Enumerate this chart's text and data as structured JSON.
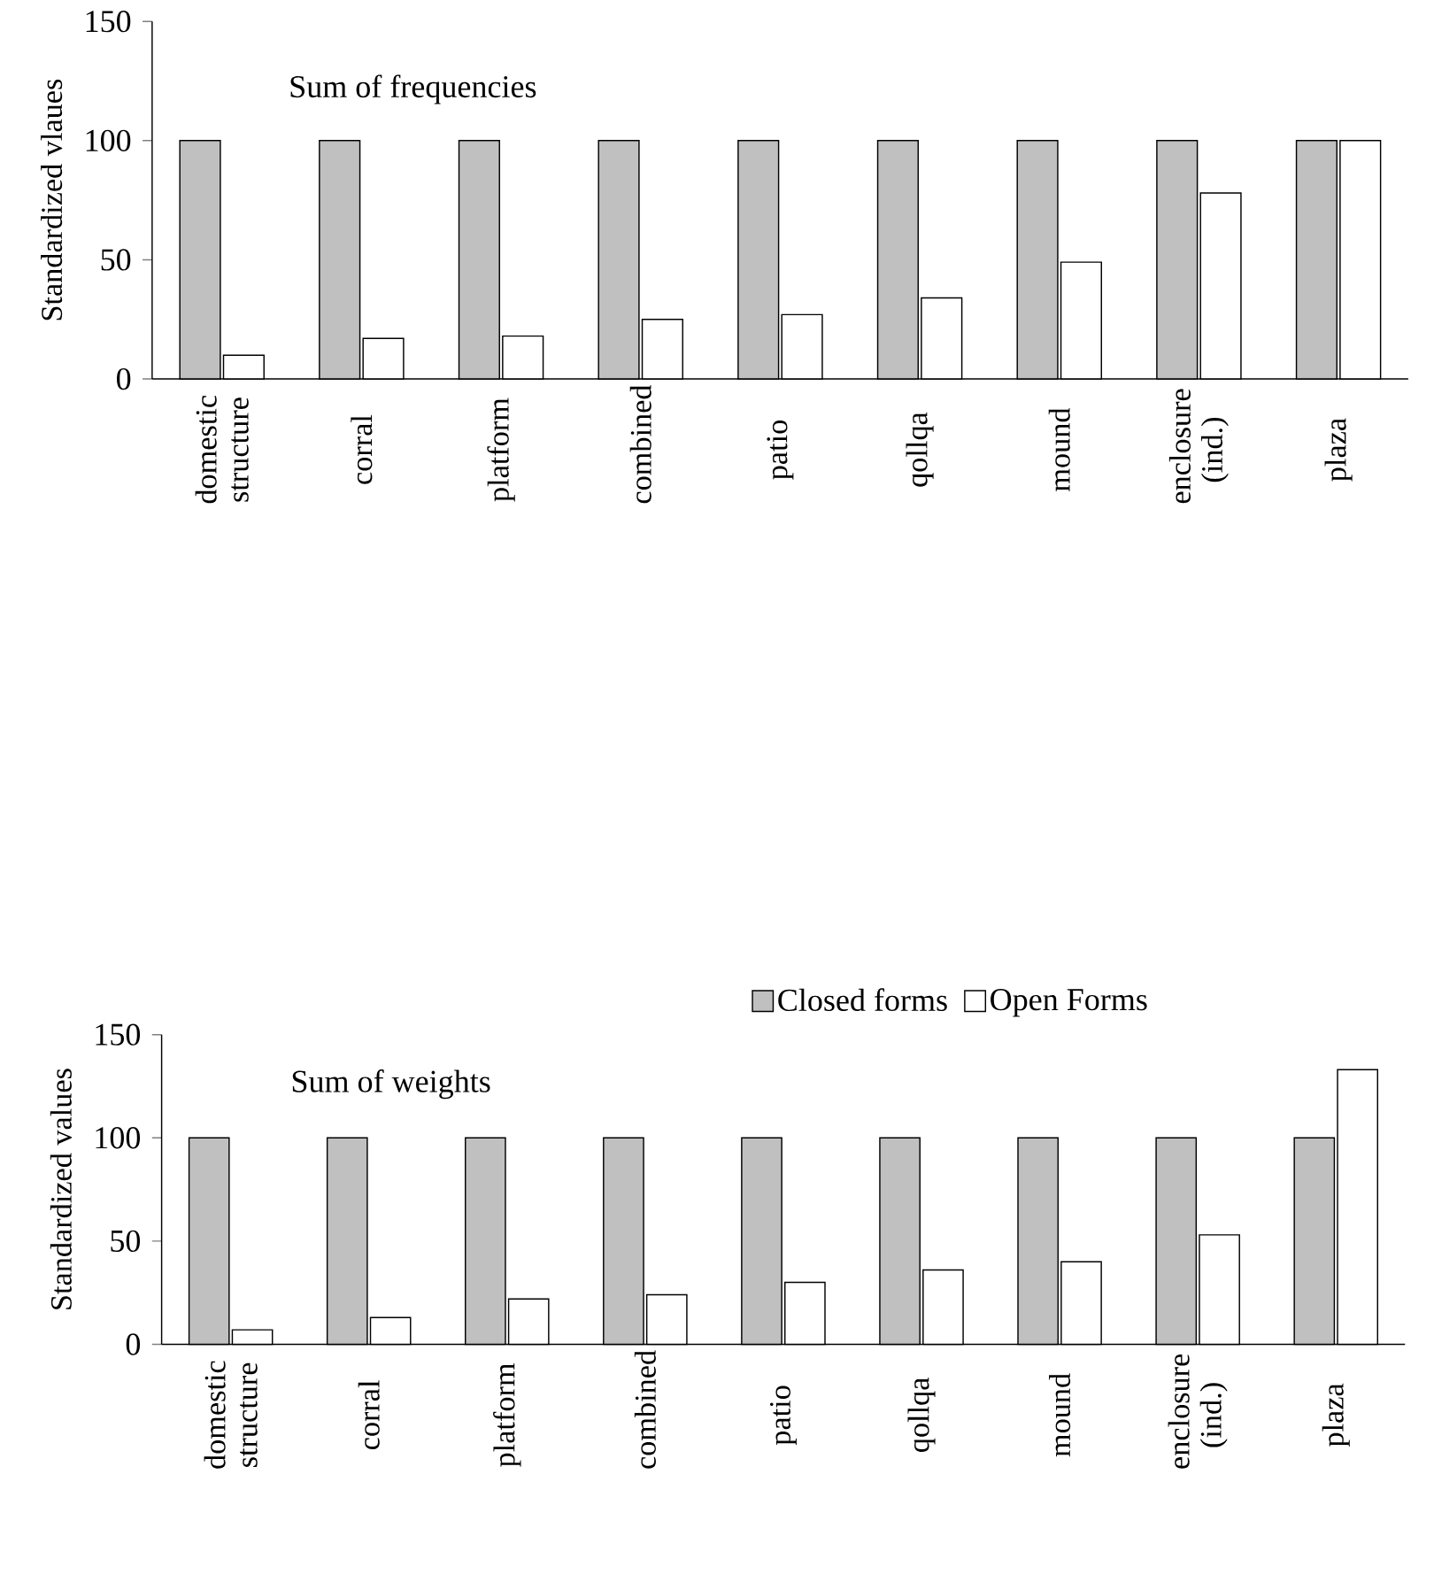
{
  "chart_data": [
    {
      "type": "bar",
      "title": "Sum of frequencies",
      "ylabel": "Standardized vlaues",
      "categories": [
        "domestic structure",
        "corral",
        "platform",
        "combined",
        "patio",
        "qollqa",
        "mound",
        "enclosure (ind.)",
        "plaza"
      ],
      "series": [
        {
          "color": "#c0c0c0",
          "values": [
            100,
            100,
            100,
            100,
            100,
            100,
            100,
            100,
            100
          ]
        },
        {
          "color": "#ffffff",
          "values": [
            10,
            17,
            18,
            25,
            27,
            34,
            49,
            78,
            100
          ]
        }
      ],
      "ylim": [
        0,
        150
      ],
      "yticks": [
        0,
        50,
        100,
        150
      ]
    },
    {
      "type": "bar",
      "title": "Sum of weights",
      "ylabel": "Standardized values",
      "categories": [
        "domestic structure",
        "corral",
        "platform",
        "combined",
        "patio",
        "qollqa",
        "mound",
        "enclosure (ind.)",
        "plaza"
      ],
      "series": [
        {
          "name": "Closed forms",
          "color": "#c0c0c0",
          "values": [
            100,
            100,
            100,
            100,
            100,
            100,
            100,
            100,
            100
          ]
        },
        {
          "name": "Open Forms",
          "color": "#ffffff",
          "values": [
            7,
            13,
            22,
            24,
            30,
            36,
            40,
            53,
            133
          ]
        }
      ],
      "ylim": [
        0,
        150
      ],
      "yticks": [
        0,
        50,
        100,
        150
      ],
      "legend": "top right"
    }
  ]
}
